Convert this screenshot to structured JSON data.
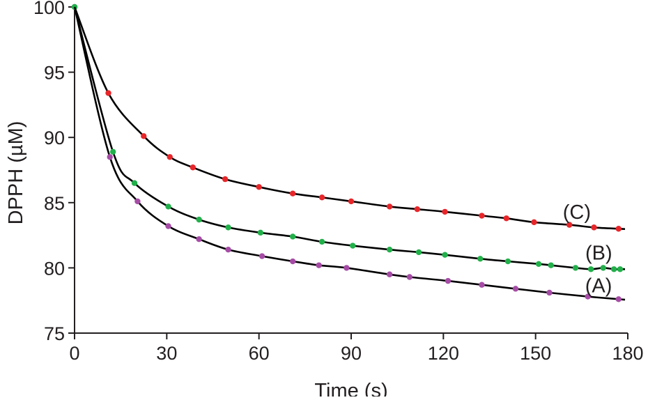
{
  "chart_data": {
    "type": "scatter",
    "title": "",
    "xlabel": "Time (s)",
    "ylabel": "DPPH (µM)",
    "xlim": [
      0,
      180
    ],
    "ylim": [
      75,
      100
    ],
    "xticks": [
      0,
      30,
      60,
      90,
      120,
      150,
      180
    ],
    "yticks": [
      75,
      80,
      85,
      90,
      95,
      100
    ],
    "grid": false,
    "legend": "none",
    "series": [
      {
        "name": "(A)",
        "color": "#a64ca6",
        "x": [
          0,
          11.5,
          20.5,
          30.5,
          40.5,
          50,
          61,
          71,
          79.5,
          88.5,
          102.5,
          109,
          121.5,
          132.5,
          143.5,
          154.5,
          167,
          177
        ],
        "y": [
          100,
          88.5,
          85.1,
          83.2,
          82.2,
          81.4,
          80.9,
          80.5,
          80.2,
          80.0,
          79.5,
          79.3,
          79.0,
          78.7,
          78.4,
          78.1,
          77.8,
          77.6
        ]
      },
      {
        "name": "(B)",
        "color": "#22b04b",
        "x": [
          0,
          12.5,
          19.5,
          30.5,
          40.5,
          50,
          60.5,
          71,
          80.5,
          90.5,
          102.5,
          112,
          120.5,
          132,
          141,
          151,
          155,
          163,
          168,
          172,
          175.5,
          177.5
        ],
        "y": [
          100,
          88.9,
          86.5,
          84.7,
          83.7,
          83.1,
          82.7,
          82.4,
          82.0,
          81.7,
          81.4,
          81.2,
          81.0,
          80.7,
          80.5,
          80.3,
          80.2,
          80.0,
          79.9,
          80.0,
          79.9,
          79.9
        ]
      },
      {
        "name": "(C)",
        "color": "#e8262a",
        "x": [
          11,
          22.5,
          31,
          38.5,
          49,
          60,
          71,
          80.5,
          90,
          102.5,
          111.5,
          120.5,
          132.5,
          140.5,
          149.5,
          161,
          169,
          177
        ],
        "y": [
          93.4,
          90.1,
          88.5,
          87.7,
          86.8,
          86.2,
          85.7,
          85.4,
          85.1,
          84.7,
          84.5,
          84.3,
          84.0,
          83.8,
          83.5,
          83.3,
          83.1,
          83.0
        ]
      }
    ],
    "annotations": [
      {
        "text": "(A)",
        "series": "(A)"
      },
      {
        "text": "(B)",
        "series": "(B)"
      },
      {
        "text": "(C)",
        "series": "(C)"
      }
    ]
  }
}
